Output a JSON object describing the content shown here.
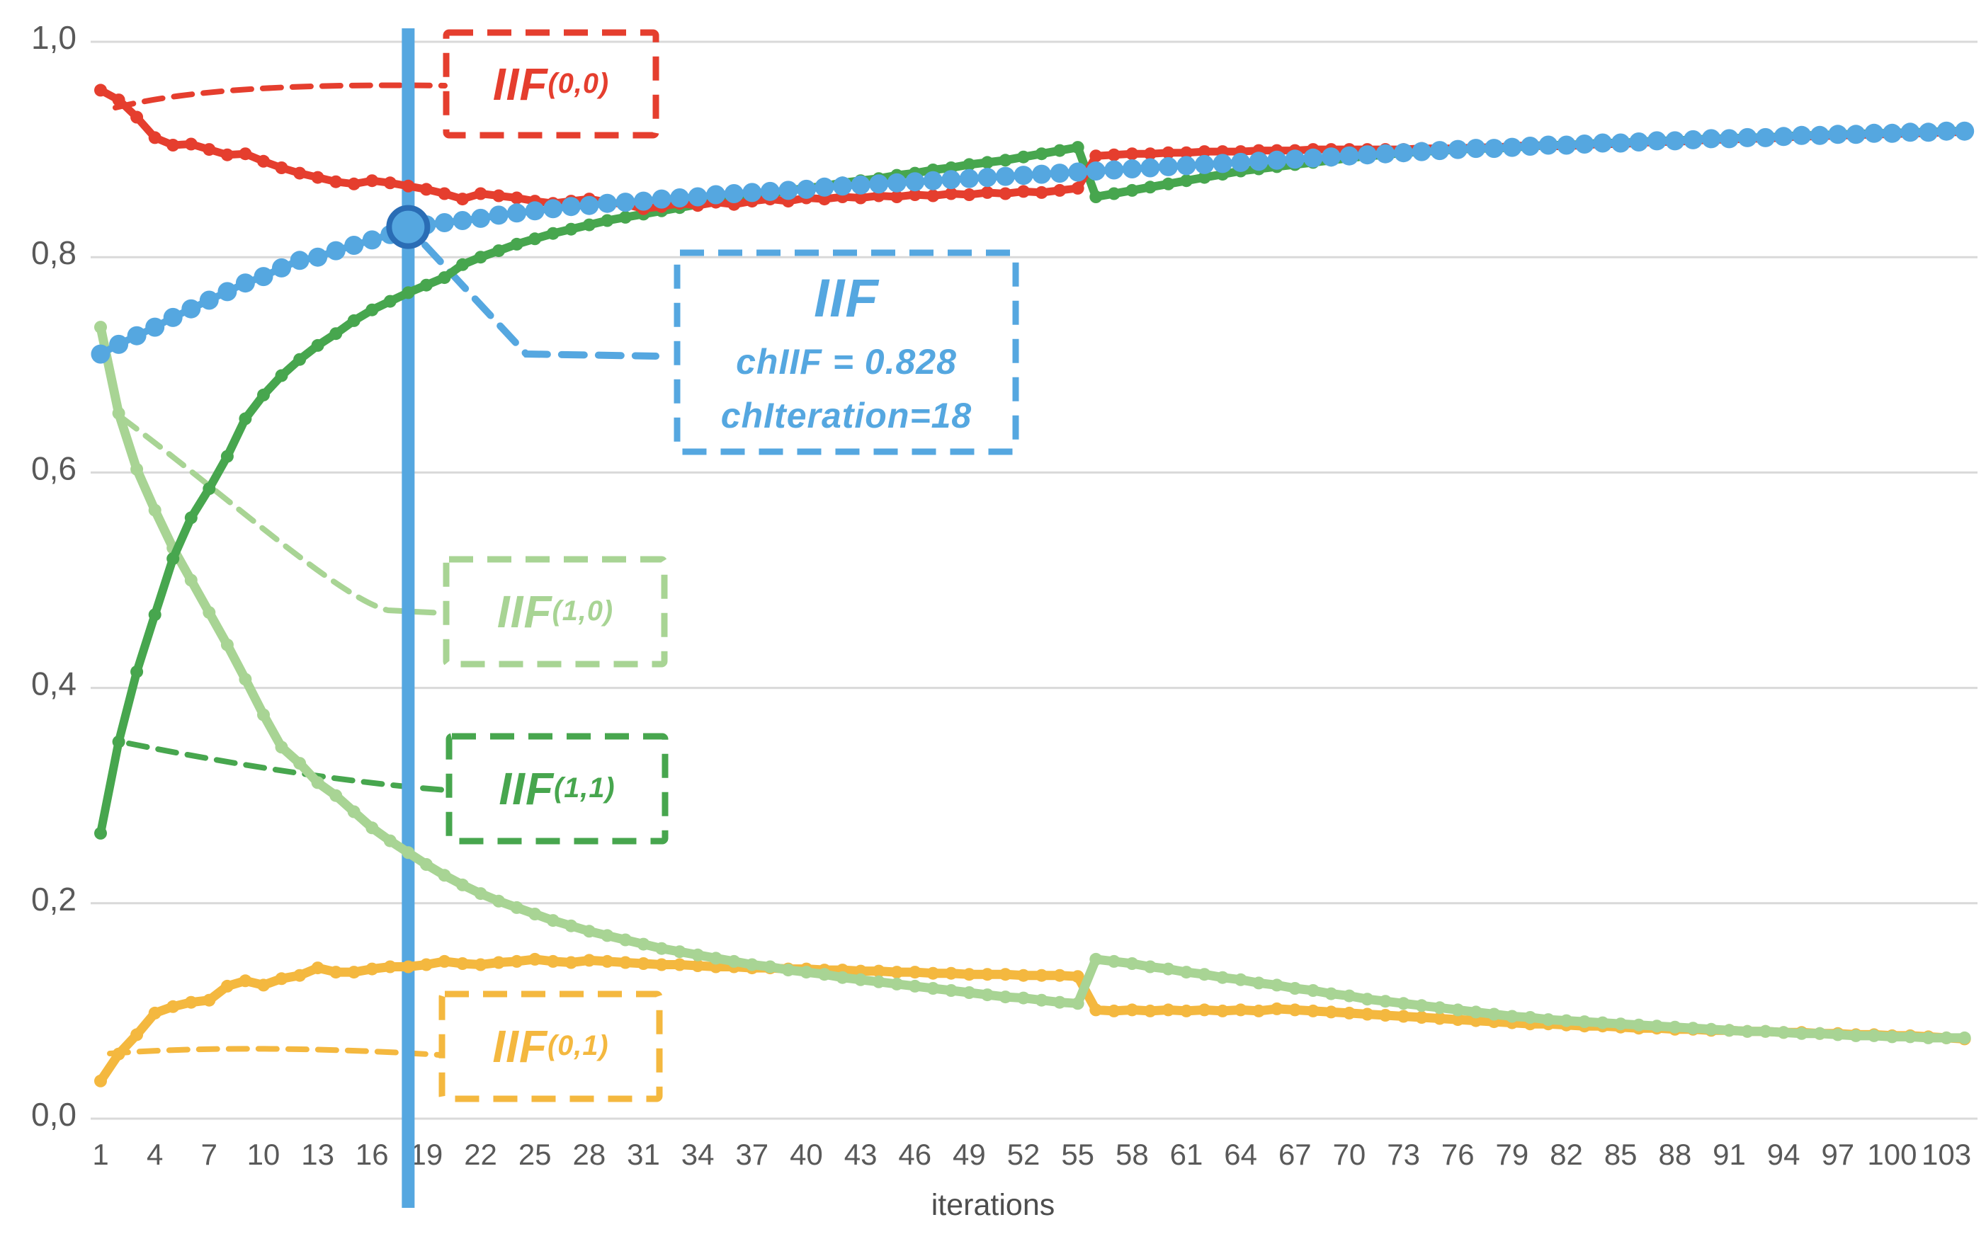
{
  "figure": {
    "background": "#FFFFFF",
    "grid_color": "#D9D9D9",
    "tick_color": "#595959",
    "x_axis": {
      "label": "iterations",
      "ticks": [
        1,
        4,
        7,
        10,
        13,
        16,
        19,
        22,
        25,
        28,
        31,
        34,
        37,
        40,
        43,
        46,
        49,
        52,
        55,
        58,
        61,
        64,
        67,
        70,
        73,
        76,
        79,
        82,
        85,
        88,
        91,
        94,
        97,
        100,
        103
      ]
    },
    "y_axis": {
      "tick_labels": [
        "0,0",
        "0,2",
        "0,4",
        "0,6",
        "0,8",
        "1,0"
      ],
      "tick_values": [
        0.0,
        0.2,
        0.4,
        0.6,
        0.8,
        1.0
      ]
    }
  },
  "chart_data": {
    "type": "line",
    "title": "",
    "xlabel": "iterations",
    "ylabel": "",
    "xlim": [
      1,
      104
    ],
    "ylim": [
      0.0,
      1.0
    ],
    "x_start": 1,
    "x_step": 1,
    "n_points": 104,
    "grid": true,
    "legend_position": "none (dashed callout boxes inside plot)",
    "series": [
      {
        "name": "IIF(0,1)",
        "color": "#F4B83F",
        "values": [
          0.035,
          0.06,
          0.078,
          0.098,
          0.104,
          0.108,
          0.11,
          0.123,
          0.128,
          0.124,
          0.13,
          0.133,
          0.14,
          0.136,
          0.136,
          0.139,
          0.141,
          0.141,
          0.143,
          0.146,
          0.144,
          0.143,
          0.145,
          0.146,
          0.148,
          0.146,
          0.145,
          0.147,
          0.146,
          0.145,
          0.144,
          0.143,
          0.143,
          0.142,
          0.141,
          0.141,
          0.14,
          0.14,
          0.139,
          0.139,
          0.138,
          0.138,
          0.137,
          0.137,
          0.136,
          0.136,
          0.135,
          0.135,
          0.134,
          0.134,
          0.134,
          0.133,
          0.133,
          0.133,
          0.132,
          0.101,
          0.1,
          0.101,
          0.1,
          0.101,
          0.1,
          0.101,
          0.1,
          0.101,
          0.1,
          0.102,
          0.101,
          0.1,
          0.099,
          0.098,
          0.097,
          0.096,
          0.095,
          0.094,
          0.093,
          0.092,
          0.091,
          0.09,
          0.089,
          0.088,
          0.088,
          0.087,
          0.086,
          0.086,
          0.085,
          0.084,
          0.084,
          0.083,
          0.083,
          0.082,
          0.082,
          0.081,
          0.081,
          0.08,
          0.08,
          0.079,
          0.079,
          0.078,
          0.078,
          0.077,
          0.077,
          0.076,
          0.075,
          0.074
        ]
      },
      {
        "name": "IIF(1,0)",
        "color": "#A8D494",
        "values": [
          0.735,
          0.655,
          0.603,
          0.565,
          0.53,
          0.5,
          0.47,
          0.44,
          0.408,
          0.375,
          0.345,
          0.33,
          0.312,
          0.3,
          0.285,
          0.27,
          0.258,
          0.247,
          0.236,
          0.226,
          0.217,
          0.209,
          0.202,
          0.196,
          0.19,
          0.184,
          0.179,
          0.174,
          0.17,
          0.166,
          0.162,
          0.158,
          0.155,
          0.152,
          0.149,
          0.146,
          0.143,
          0.141,
          0.138,
          0.136,
          0.134,
          0.131,
          0.129,
          0.127,
          0.125,
          0.123,
          0.121,
          0.119,
          0.117,
          0.115,
          0.113,
          0.112,
          0.11,
          0.108,
          0.107,
          0.148,
          0.146,
          0.144,
          0.141,
          0.139,
          0.136,
          0.134,
          0.131,
          0.129,
          0.126,
          0.124,
          0.121,
          0.119,
          0.116,
          0.114,
          0.111,
          0.109,
          0.107,
          0.105,
          0.103,
          0.101,
          0.099,
          0.097,
          0.095,
          0.094,
          0.092,
          0.091,
          0.09,
          0.089,
          0.088,
          0.087,
          0.086,
          0.085,
          0.084,
          0.083,
          0.082,
          0.081,
          0.081,
          0.08,
          0.079,
          0.079,
          0.078,
          0.077,
          0.077,
          0.076,
          0.076,
          0.075,
          0.075,
          0.075
        ]
      },
      {
        "name": "IIF(1,1)",
        "color": "#47A64E",
        "values": [
          0.265,
          0.35,
          0.415,
          0.468,
          0.52,
          0.558,
          0.585,
          0.615,
          0.65,
          0.672,
          0.69,
          0.705,
          0.718,
          0.729,
          0.741,
          0.751,
          0.759,
          0.767,
          0.774,
          0.781,
          0.793,
          0.8,
          0.806,
          0.812,
          0.817,
          0.822,
          0.826,
          0.83,
          0.834,
          0.837,
          0.84,
          0.843,
          0.846,
          0.849,
          0.852,
          0.854,
          0.857,
          0.859,
          0.862,
          0.864,
          0.866,
          0.869,
          0.871,
          0.873,
          0.876,
          0.878,
          0.881,
          0.883,
          0.886,
          0.888,
          0.89,
          0.893,
          0.896,
          0.899,
          0.902,
          0.856,
          0.859,
          0.862,
          0.865,
          0.868,
          0.871,
          0.874,
          0.877,
          0.88,
          0.882,
          0.884,
          0.886,
          0.888,
          0.89,
          0.892,
          0.894,
          0.895,
          0.897,
          0.898,
          0.899,
          0.9,
          0.901,
          0.901,
          0.902,
          0.903,
          0.904,
          0.904,
          0.905,
          0.906,
          0.906,
          0.907,
          0.908,
          0.908,
          0.909,
          0.91,
          0.91,
          0.911,
          0.911,
          0.912,
          0.913,
          0.913,
          0.914,
          0.914,
          0.915,
          0.915,
          0.916,
          0.916,
          0.917,
          0.917
        ]
      },
      {
        "name": "IIF(0,0)",
        "color": "#E53E2E",
        "values": [
          0.955,
          0.946,
          0.93,
          0.911,
          0.904,
          0.905,
          0.9,
          0.895,
          0.896,
          0.889,
          0.883,
          0.878,
          0.874,
          0.87,
          0.868,
          0.871,
          0.869,
          0.866,
          0.863,
          0.859,
          0.854,
          0.859,
          0.857,
          0.855,
          0.852,
          0.85,
          0.852,
          0.854,
          0.851,
          0.849,
          0.845,
          0.847,
          0.85,
          0.848,
          0.851,
          0.849,
          0.852,
          0.854,
          0.852,
          0.855,
          0.854,
          0.856,
          0.855,
          0.857,
          0.856,
          0.858,
          0.857,
          0.859,
          0.858,
          0.86,
          0.859,
          0.861,
          0.86,
          0.862,
          0.864,
          0.894,
          0.895,
          0.896,
          0.896,
          0.897,
          0.897,
          0.898,
          0.898,
          0.898,
          0.899,
          0.899,
          0.899,
          0.9,
          0.9,
          0.9,
          0.9,
          0.9,
          0.9,
          0.901,
          0.901,
          0.901,
          0.902,
          0.902,
          0.903,
          0.904,
          0.903,
          0.903,
          0.904,
          0.905,
          0.905,
          0.906,
          0.907,
          0.907,
          0.908,
          0.909,
          0.909,
          0.91,
          0.91,
          0.911,
          0.912,
          0.912,
          0.913,
          0.913,
          0.914,
          0.914,
          0.915,
          0.915,
          0.916,
          0.916
        ]
      },
      {
        "name": "IIF",
        "color": "#55A7E0",
        "values": [
          0.71,
          0.719,
          0.727,
          0.735,
          0.744,
          0.752,
          0.76,
          0.768,
          0.776,
          0.782,
          0.79,
          0.797,
          0.8,
          0.806,
          0.811,
          0.816,
          0.821,
          0.828,
          0.83,
          0.832,
          0.834,
          0.836,
          0.839,
          0.841,
          0.843,
          0.845,
          0.847,
          0.848,
          0.85,
          0.851,
          0.852,
          0.854,
          0.855,
          0.856,
          0.858,
          0.859,
          0.86,
          0.861,
          0.862,
          0.863,
          0.865,
          0.866,
          0.867,
          0.868,
          0.869,
          0.87,
          0.871,
          0.872,
          0.873,
          0.874,
          0.875,
          0.876,
          0.877,
          0.878,
          0.879,
          0.88,
          0.881,
          0.882,
          0.883,
          0.884,
          0.885,
          0.886,
          0.887,
          0.888,
          0.889,
          0.89,
          0.891,
          0.892,
          0.893,
          0.894,
          0.895,
          0.896,
          0.897,
          0.898,
          0.899,
          0.9,
          0.901,
          0.901,
          0.902,
          0.903,
          0.904,
          0.904,
          0.905,
          0.906,
          0.906,
          0.907,
          0.908,
          0.908,
          0.909,
          0.91,
          0.91,
          0.911,
          0.911,
          0.912,
          0.913,
          0.913,
          0.914,
          0.914,
          0.915,
          0.915,
          0.916,
          0.916,
          0.917,
          0.917
        ]
      }
    ],
    "annotations": {
      "vertical_line": {
        "x": 18,
        "color": "#55A7E0"
      },
      "highlight_point": {
        "x": 18,
        "y": 0.828,
        "fill": "#55A7E0",
        "ring_color": "#2A6DB5"
      }
    }
  },
  "callouts": {
    "iif00": {
      "main": "IIF",
      "sub": "(0,0)",
      "color": "#E53E2E"
    },
    "iif": {
      "title": "IIF",
      "line2": "chIIF = 0.828",
      "line3": "chIteration=18",
      "color": "#55A7E0"
    },
    "iif10": {
      "main": "IIF",
      "sub": "(1,0)",
      "color": "#A8D494"
    },
    "iif11": {
      "main": "IIF",
      "sub": "(1,1)",
      "color": "#47A64E"
    },
    "iif01": {
      "main": "IIF",
      "sub": "(0,1)",
      "color": "#F4B83F"
    }
  }
}
